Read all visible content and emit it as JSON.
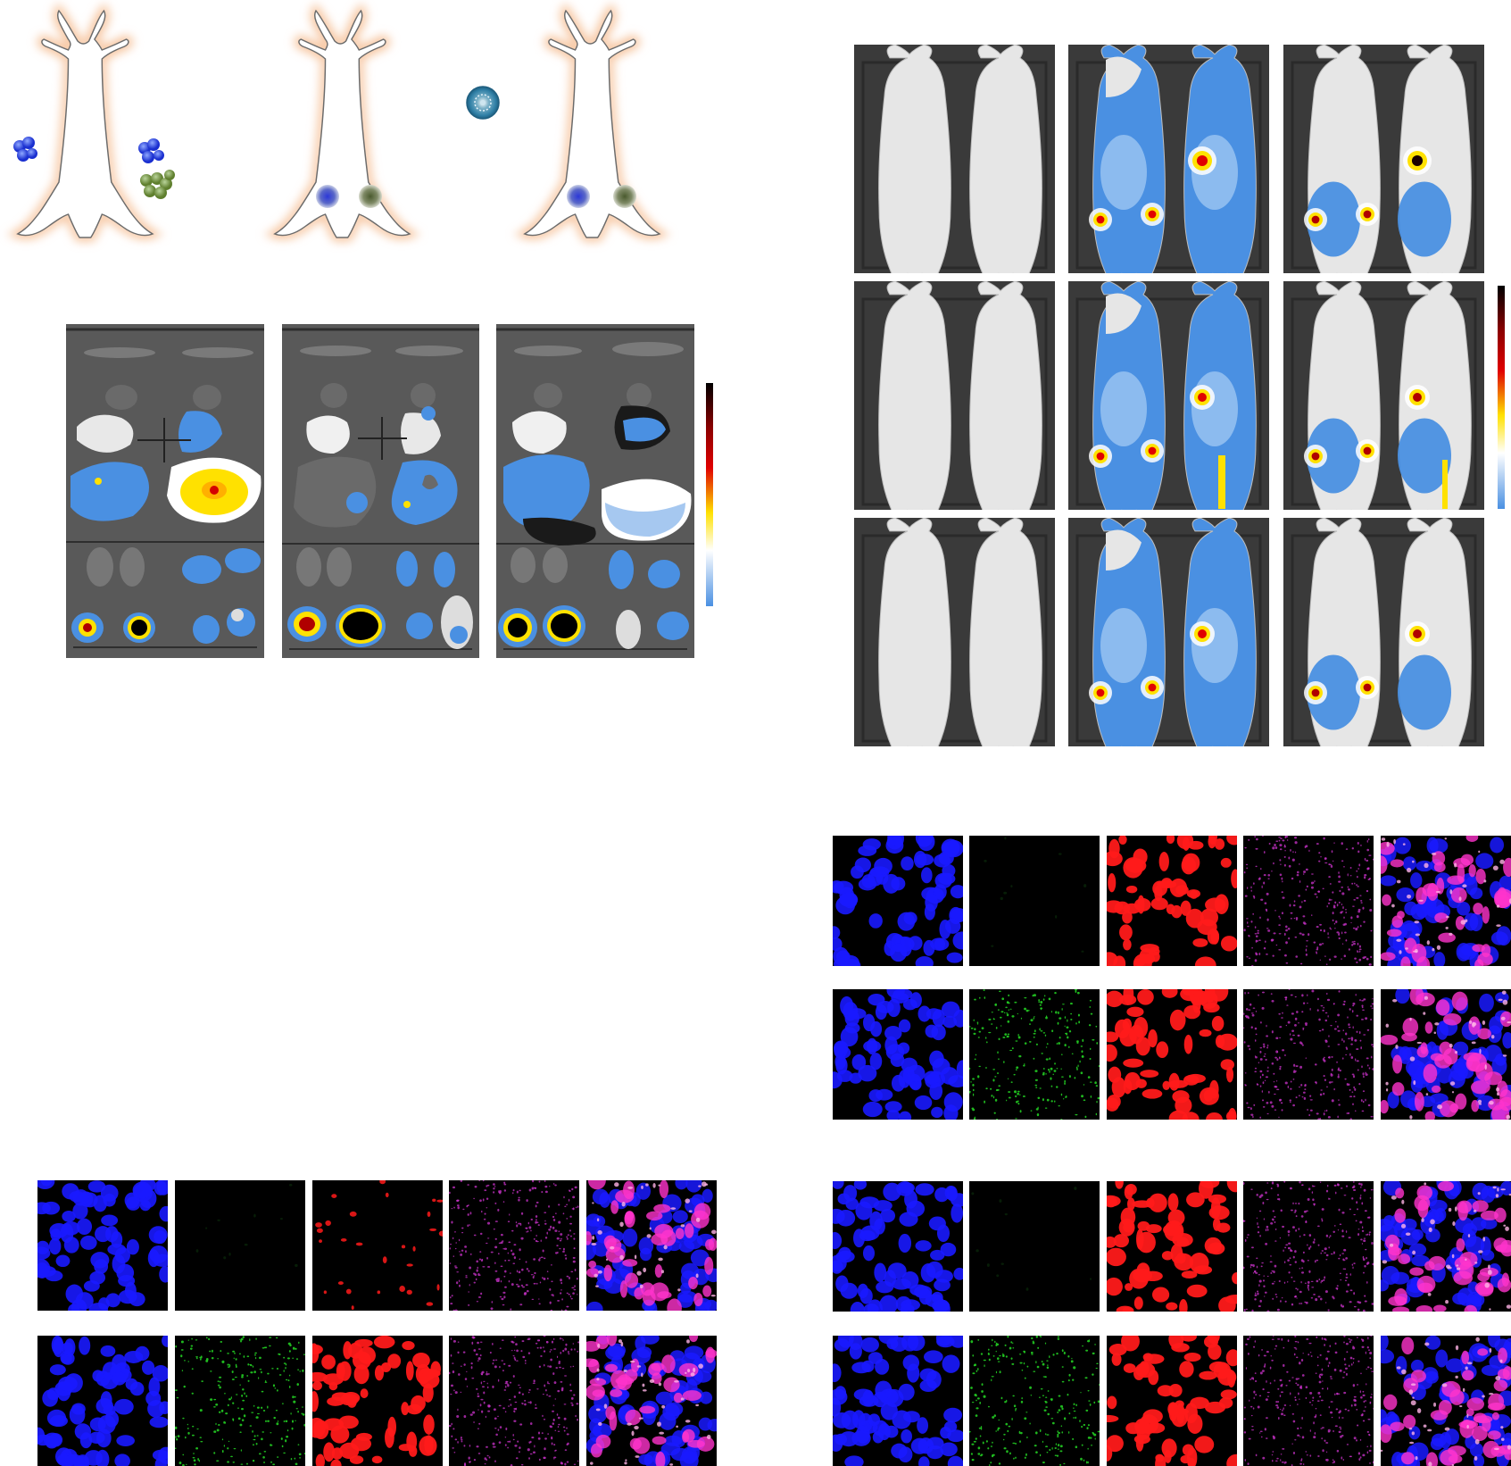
{
  "figure": {
    "panels": [
      {
        "id": "schematics",
        "content": "mouse-model-schematics"
      },
      {
        "id": "ex-vivo-organs",
        "content": "ex-vivo-organ-fluorescence"
      },
      {
        "id": "in-vivo-imaging",
        "content": "whole-body-fluorescence-imaging"
      },
      {
        "id": "if-left",
        "content": "immunofluorescence-panels"
      },
      {
        "id": "if-right",
        "content": "immunofluorescence-panels"
      }
    ],
    "colormap": {
      "high": "#000000",
      "mid_high": "#d40000",
      "mid": "#ffe100",
      "low_mid": "#ffffff",
      "low": "#4a90e2"
    },
    "channel_colors": {
      "nuclei": "#1a1aff",
      "green": "#22cc22",
      "red": "#ff1a1a",
      "magenta": "#cc33cc"
    }
  }
}
